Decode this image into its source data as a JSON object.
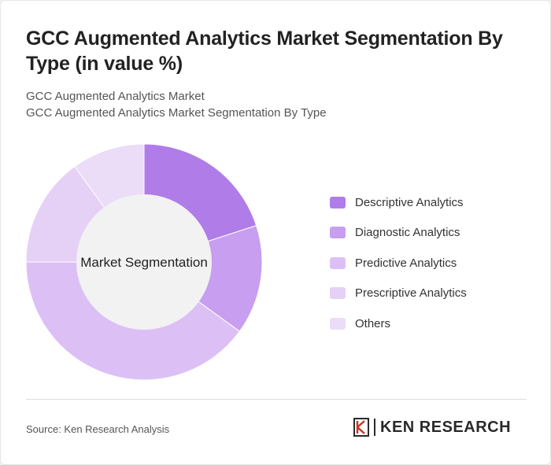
{
  "header": {
    "title": "GCC Augmented Analytics Market Segmentation By Type (in value %)",
    "subtitle_1": "GCC Augmented Analytics Market",
    "subtitle_2": "GCC Augmented Analytics Market Segmentation By Type"
  },
  "chart_data": {
    "type": "pie",
    "variant": "donut",
    "center_label": "Market Segmentation",
    "categories": [
      "Descriptive Analytics",
      "Diagnostic Analytics",
      "Predictive Analytics",
      "Prescriptive Analytics",
      "Others"
    ],
    "values": [
      20,
      15,
      40,
      15,
      10
    ],
    "colors": [
      "#b07ce8",
      "#c79ef0",
      "#dcc0f5",
      "#e5d0f6",
      "#ebdcf8"
    ],
    "legend_position": "right"
  },
  "footer": {
    "source": "Source: Ken Research Analysis",
    "logo_text": "KEN RESEARCH"
  }
}
